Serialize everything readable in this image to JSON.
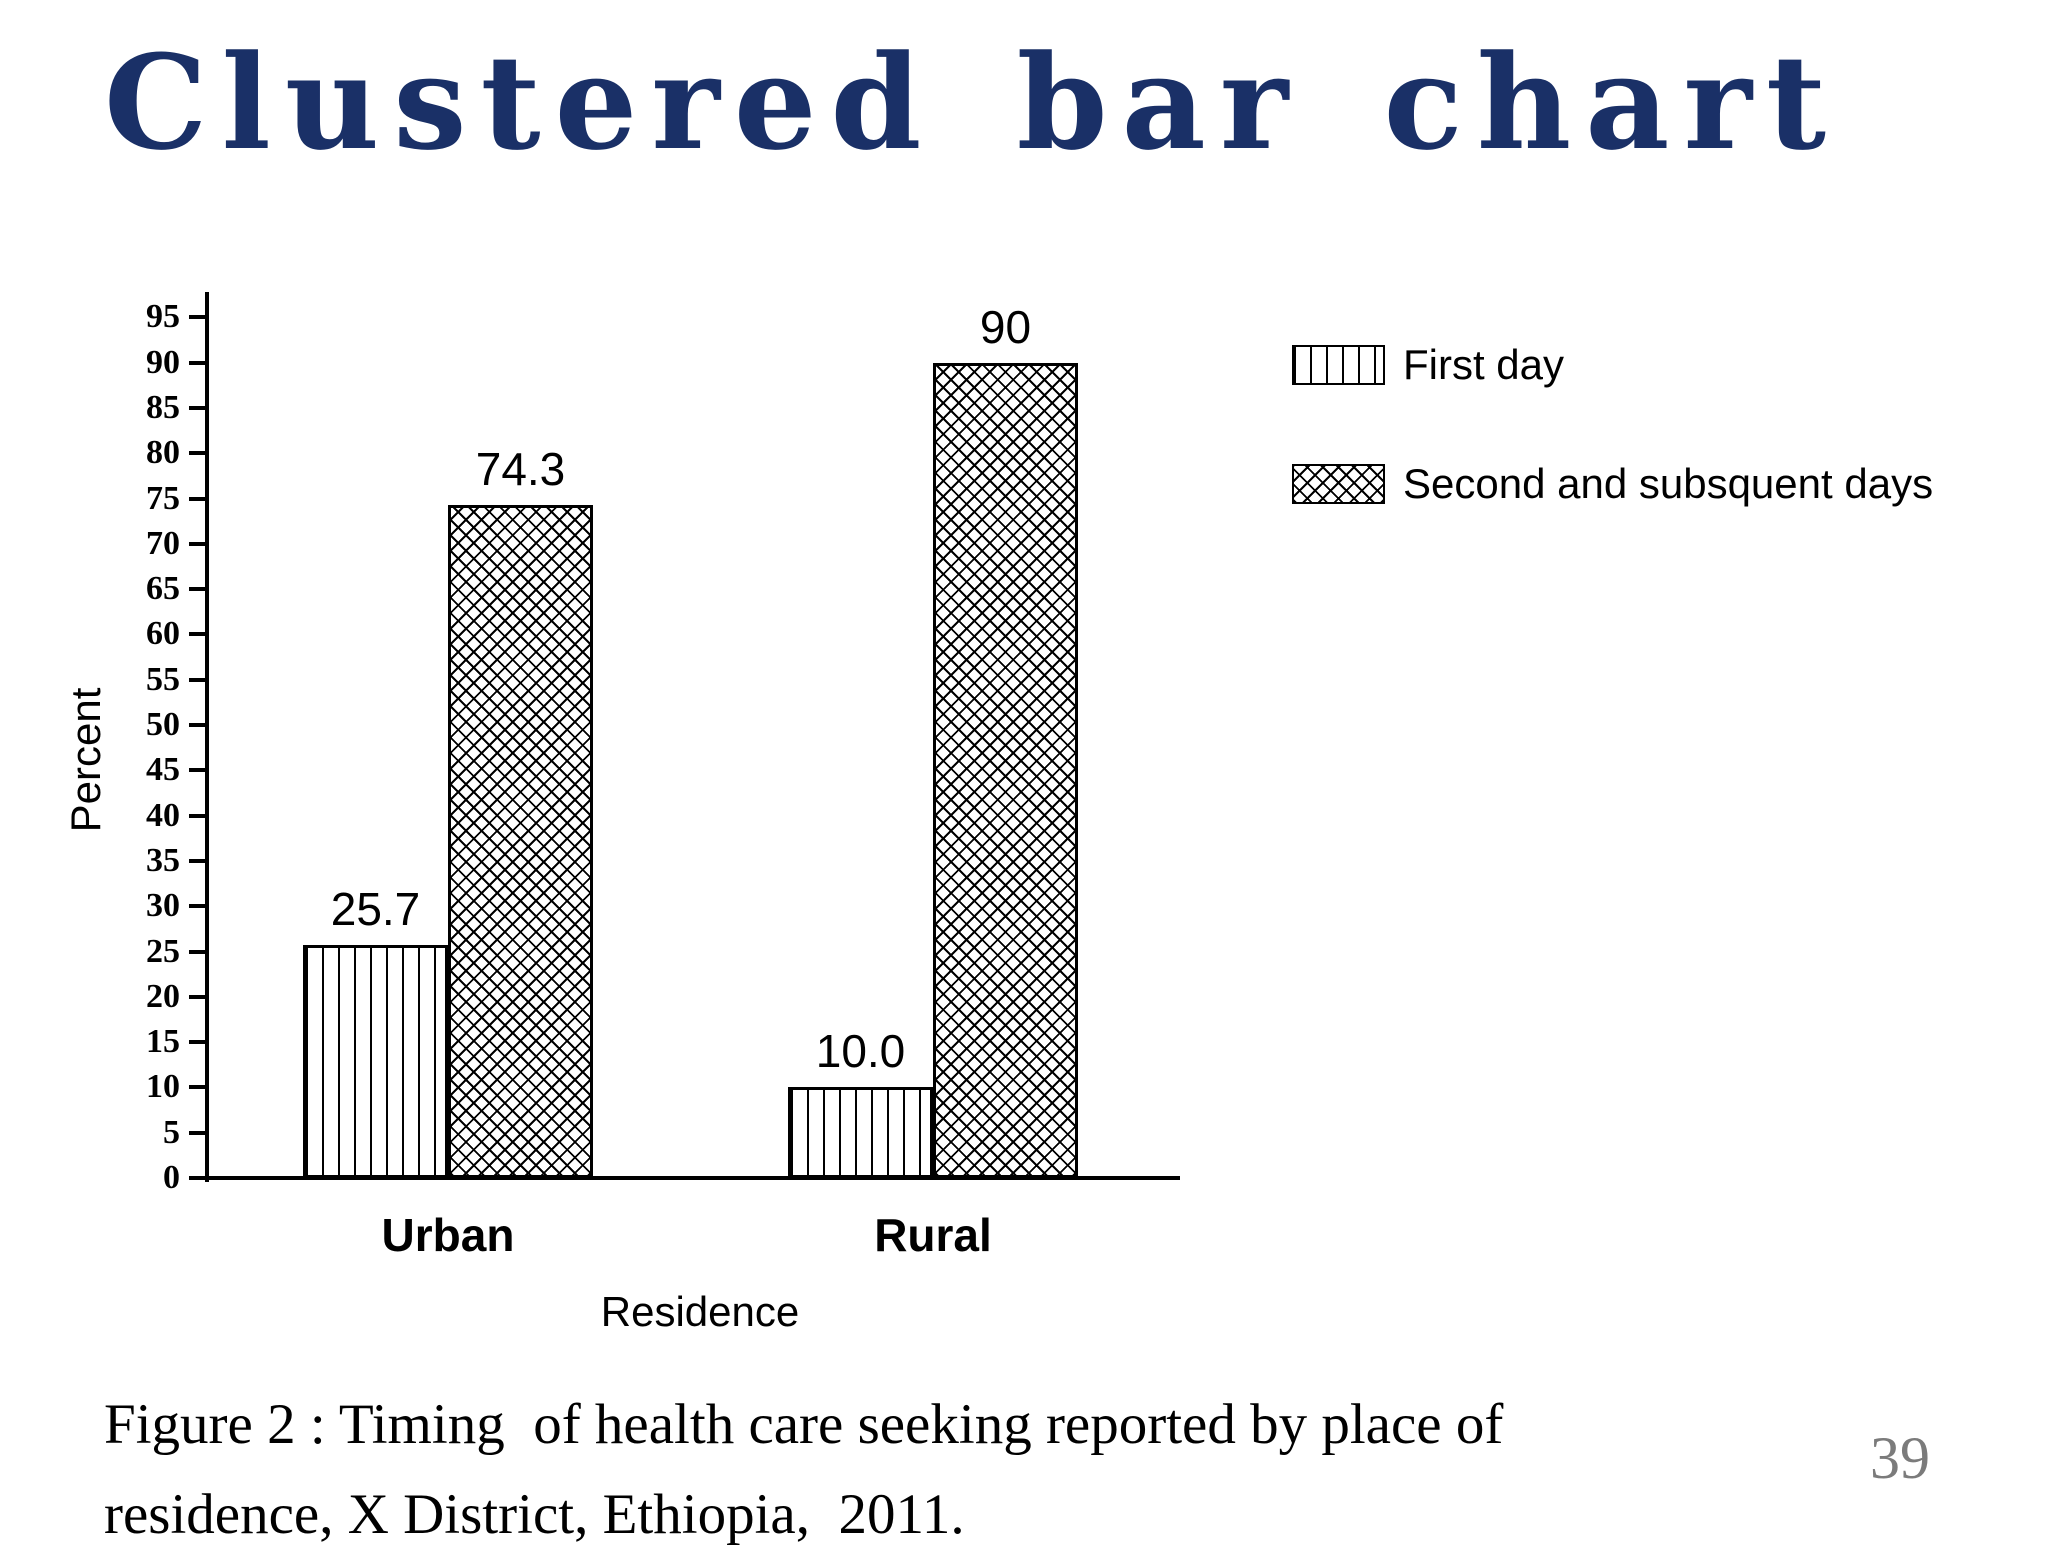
{
  "slide": {
    "title": "Clustered bar chart",
    "title_color": "#1a3067",
    "page_number": "39",
    "caption_line1": "Figure 2 : Timing  of health care seeking reported by place of",
    "caption_line2": "residence, X District, Ethiopia,  2011."
  },
  "chart_data": {
    "type": "bar",
    "categories": [
      "Urban",
      "Rural"
    ],
    "series": [
      {
        "name": "First day",
        "pattern": "vertical-stripes",
        "values": [
          25.7,
          10.0
        ],
        "value_labels": [
          "25.7",
          "10.0"
        ]
      },
      {
        "name": "Second and subsquent days",
        "pattern": "crosshatch",
        "values": [
          74.3,
          90
        ],
        "value_labels": [
          "74.3",
          "90"
        ]
      }
    ],
    "xlabel": "Residence",
    "ylabel": "Percent",
    "ylim": [
      0,
      95
    ],
    "ytick_step": 5,
    "bar_fill": "#ffffff",
    "bar_stroke": "#000000",
    "grid": false,
    "legend_position": "top-right"
  }
}
